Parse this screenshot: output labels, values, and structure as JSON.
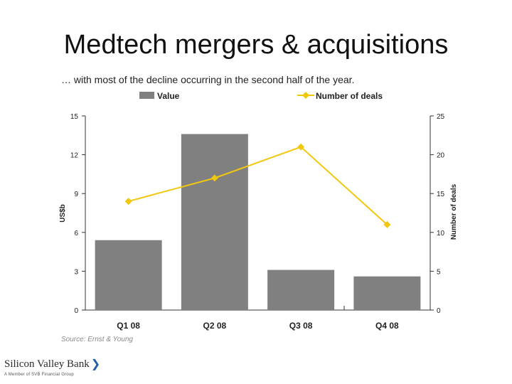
{
  "slide": {
    "title": "Medtech mergers & acquisitions",
    "subtitle": "… with most of the decline occurring in the second half of the year.",
    "source": "Source: Ernst & Young"
  },
  "logo": {
    "name": "Silicon Valley Bank",
    "tagline": "A Member of SVB Financial Group"
  },
  "colors": {
    "bar": "#808080",
    "line": "#f2c80f",
    "axis": "#333333"
  },
  "chart_data": {
    "type": "bar",
    "categories": [
      "Q1 08",
      "Q2 08",
      "Q3 08",
      "Q4 08"
    ],
    "series": [
      {
        "name": "Value",
        "type": "bar",
        "axis": "left",
        "values": [
          5.4,
          13.6,
          3.1,
          2.6
        ]
      },
      {
        "name": "Number of deals",
        "type": "line",
        "axis": "right",
        "values": [
          14,
          17,
          21,
          11
        ]
      }
    ],
    "ylabel": "US$b",
    "ylabel_right": "Number of deals",
    "ylim": [
      0,
      15
    ],
    "ylim_right": [
      0,
      25
    ],
    "yticks": [
      "0",
      "3",
      "6",
      "9",
      "12",
      "15"
    ],
    "yticks_right": [
      "0",
      "5",
      "10",
      "15",
      "20",
      "25"
    ],
    "grid": false,
    "legend": "top"
  }
}
